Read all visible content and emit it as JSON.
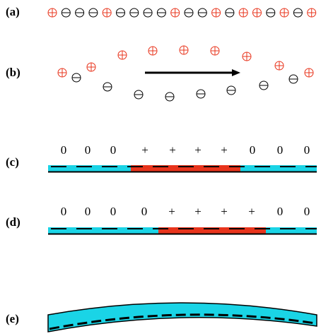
{
  "labels": [
    "(a)",
    "(b)",
    "(c)",
    "(d)",
    "(e)"
  ],
  "row_c": [
    "0",
    "0",
    "0",
    "+",
    "+",
    "+",
    "+",
    "0",
    "0",
    "0"
  ],
  "row_d": [
    "0",
    "0",
    "0",
    "0",
    "+",
    "+",
    "+",
    "+",
    "0",
    "0"
  ]
}
